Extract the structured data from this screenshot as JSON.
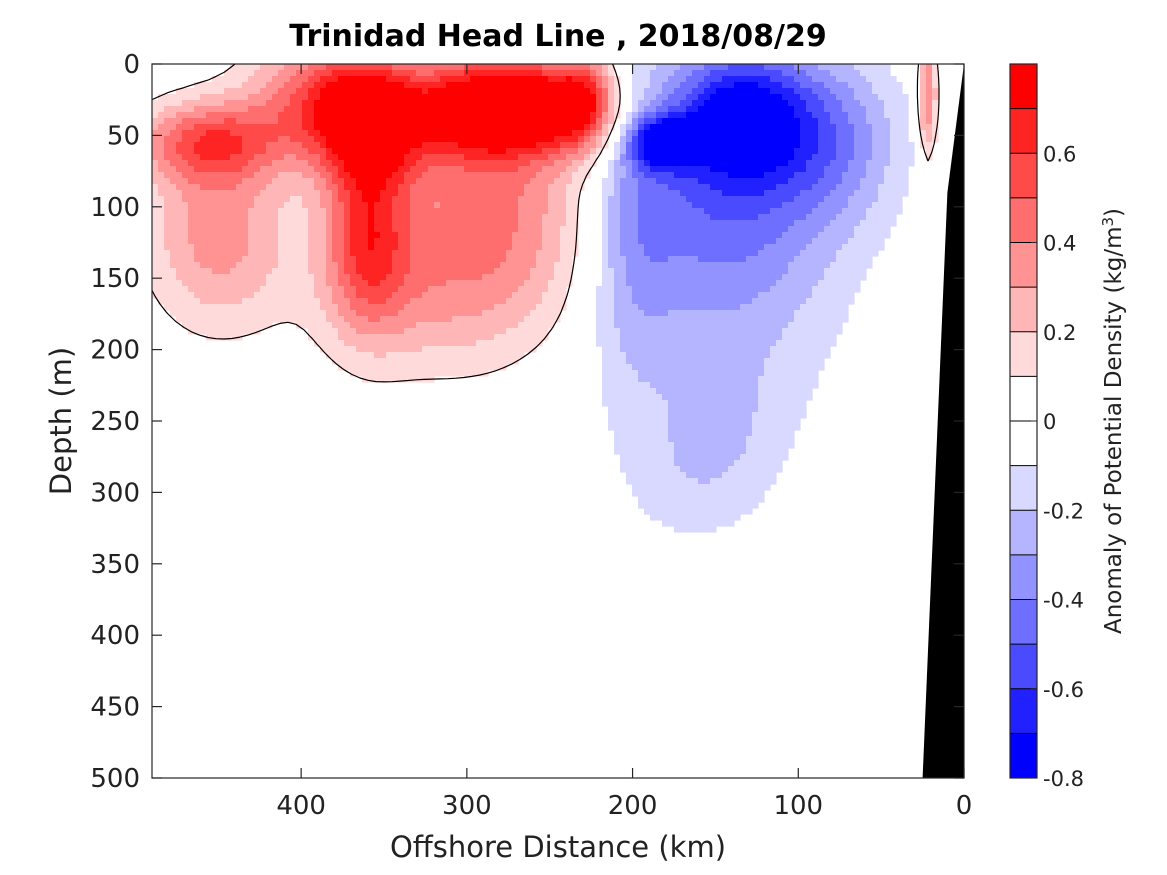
{
  "chart_data": {
    "type": "heatmap",
    "title": "Trinidad Head Line , 2018/08/29",
    "xlabel": "Offshore Distance (km)",
    "ylabel": "Depth (m)",
    "colorbar_label": "Anomaly of Potential Density (kg/m",
    "colorbar_label_sup": "3",
    "colorbar_label_end": ")",
    "xlim": [
      490,
      0
    ],
    "ylim": [
      0,
      500
    ],
    "x_ticks": [
      400,
      300,
      200,
      100,
      0
    ],
    "x_tick_labels": [
      "400",
      "300",
      "200",
      "100",
      "0"
    ],
    "y_ticks": [
      0,
      50,
      100,
      150,
      200,
      250,
      300,
      350,
      400,
      450,
      500
    ],
    "y_tick_labels": [
      "0",
      "50",
      "100",
      "150",
      "200",
      "250",
      "300",
      "350",
      "400",
      "450",
      "500"
    ],
    "colorbar": {
      "range": [
        -0.8,
        0.8
      ],
      "levels": [
        -0.8,
        -0.7,
        -0.6,
        -0.5,
        -0.4,
        -0.3,
        -0.2,
        -0.1,
        0,
        0.1,
        0.2,
        0.3,
        0.4,
        0.5,
        0.6,
        0.7,
        0.8
      ],
      "tick_values": [
        -0.8,
        -0.6,
        -0.4,
        -0.2,
        0,
        0.2,
        0.4,
        0.6
      ],
      "tick_labels": [
        "-0.8",
        "-0.6",
        "-0.4",
        "-0.2",
        "0",
        "0.2",
        "0.4",
        "0.6"
      ],
      "colors": [
        "#0000ff",
        "#2121ff",
        "#4a4aff",
        "#6e6eff",
        "#9393ff",
        "#b5b5ff",
        "#d9d9ff",
        "#ffffff",
        "#ffffff",
        "#ffdada",
        "#ffb6b6",
        "#ff9292",
        "#ff6e6e",
        "#ff4a4a",
        "#ff2424",
        "#ff0000"
      ]
    },
    "anomaly_features": [
      {
        "x": 358,
        "depth": 40,
        "value": 0.7,
        "sx": 22,
        "sd": 30
      },
      {
        "x": 255,
        "depth": 30,
        "value": 0.72,
        "sx": 30,
        "sd": 22
      },
      {
        "x": 300,
        "depth": 30,
        "value": 0.55,
        "sx": 28,
        "sd": 25
      },
      {
        "x": 360,
        "depth": 120,
        "value": 0.5,
        "sx": 18,
        "sd": 45
      },
      {
        "x": 280,
        "depth": 100,
        "value": 0.4,
        "sx": 45,
        "sd": 60
      },
      {
        "x": 455,
        "depth": 55,
        "value": 0.5,
        "sx": 30,
        "sd": 20
      },
      {
        "x": 450,
        "depth": 120,
        "value": 0.35,
        "sx": 30,
        "sd": 45
      },
      {
        "x": 390,
        "depth": 25,
        "value": 0.45,
        "sx": 30,
        "sd": 30
      },
      {
        "x": 330,
        "depth": 160,
        "value": 0.2,
        "sx": 45,
        "sd": 40
      },
      {
        "x": 228,
        "depth": 25,
        "value": 0.35,
        "sx": 12,
        "sd": 25
      },
      {
        "x": 22,
        "depth": 25,
        "value": 0.45,
        "sx": 4,
        "sd": 30
      },
      {
        "x": 180,
        "depth": 55,
        "value": -0.65,
        "sx": 14,
        "sd": 12
      },
      {
        "x": 135,
        "depth": 35,
        "value": -0.6,
        "sx": 28,
        "sd": 32
      },
      {
        "x": 145,
        "depth": 90,
        "value": -0.4,
        "sx": 50,
        "sd": 60
      },
      {
        "x": 80,
        "depth": 50,
        "value": -0.3,
        "sx": 30,
        "sd": 40
      },
      {
        "x": 150,
        "depth": 200,
        "value": -0.15,
        "sx": 55,
        "sd": 80
      },
      {
        "x": 200,
        "depth": 110,
        "value": -0.2,
        "sx": 18,
        "sd": 80
      },
      {
        "x": 170,
        "depth": 290,
        "value": -0.09,
        "sx": 25,
        "sd": 35
      },
      {
        "x": 140,
        "depth": 260,
        "value": -0.08,
        "sx": 22,
        "sd": 40
      }
    ],
    "bathymetry": [
      [
        25,
        500
      ],
      [
        10,
        90
      ],
      [
        0,
        0
      ]
    ]
  }
}
